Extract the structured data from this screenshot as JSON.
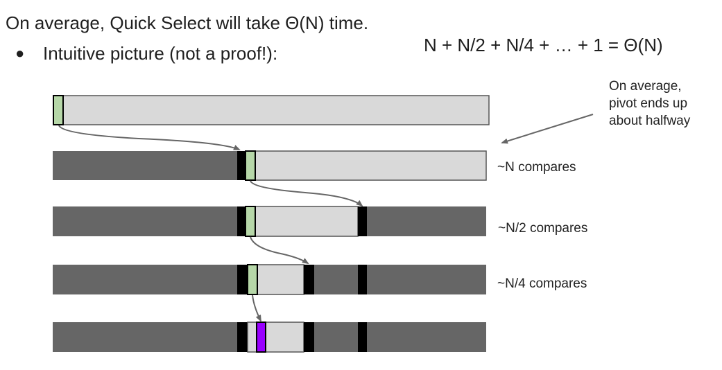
{
  "header": {
    "title": "On average, Quick Select will take Θ(N) time.",
    "bullet": "●",
    "bullet_text": "Intuitive picture (not a proof!):",
    "formula": "N + N/2 + N/4 + … + 1 = Θ(N)"
  },
  "annotation": {
    "lines": [
      "On average,",
      "pivot ends up",
      "about halfway"
    ]
  },
  "compare_labels": [
    "~N compares",
    "~N/2 compares",
    "~N/4 compares"
  ],
  "colors": {
    "active": "#d9d9d9",
    "discarded": "#666666",
    "boundary": "#000000",
    "pivot": "#b6d7a8",
    "result": "#9900ff",
    "arrow": "#666666"
  }
}
